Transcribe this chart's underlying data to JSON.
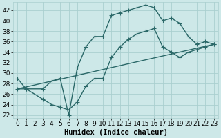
{
  "title": "",
  "xlabel": "Humidex (Indice chaleur)",
  "bg_color": "#cde8e8",
  "grid_color": "#aacfcf",
  "line_color": "#2a6868",
  "xlim": [
    -0.5,
    23.5
  ],
  "ylim": [
    21.5,
    43.5
  ],
  "xticks": [
    0,
    1,
    2,
    3,
    4,
    5,
    6,
    7,
    8,
    9,
    10,
    11,
    12,
    13,
    14,
    15,
    16,
    17,
    18,
    19,
    20,
    21,
    22,
    23
  ],
  "yticks": [
    22,
    24,
    26,
    28,
    30,
    32,
    34,
    36,
    38,
    40,
    42
  ],
  "series1_x": [
    0,
    1,
    3,
    4,
    5,
    6,
    7,
    8,
    9,
    10,
    11,
    12,
    13,
    14,
    15,
    16,
    17,
    18,
    19,
    20,
    21,
    22,
    23
  ],
  "series1_y": [
    29,
    27,
    27,
    28.5,
    29,
    22,
    31,
    35,
    37,
    37,
    41,
    41.5,
    42,
    42.5,
    43,
    42.5,
    40,
    40.5,
    39.5,
    37,
    35.5,
    36,
    35.5
  ],
  "series2_x": [
    0,
    1,
    3,
    4,
    5,
    6,
    7,
    8,
    9,
    10,
    11,
    12,
    13,
    14,
    15,
    16,
    17,
    18,
    19,
    20,
    21,
    22,
    23
  ],
  "series2_y": [
    27,
    27,
    25,
    24,
    23.5,
    23,
    24.5,
    27.5,
    29,
    29,
    33,
    35,
    36.5,
    37.5,
    38,
    38.5,
    35,
    34,
    33,
    34,
    34.5,
    35,
    35.5
  ],
  "series3_x": [
    0,
    23
  ],
  "series3_y": [
    27,
    35.5
  ],
  "marker": "+",
  "markersize": 4,
  "linewidth": 1.0,
  "tick_fontsize": 6.5,
  "xlabel_fontsize": 7.5
}
